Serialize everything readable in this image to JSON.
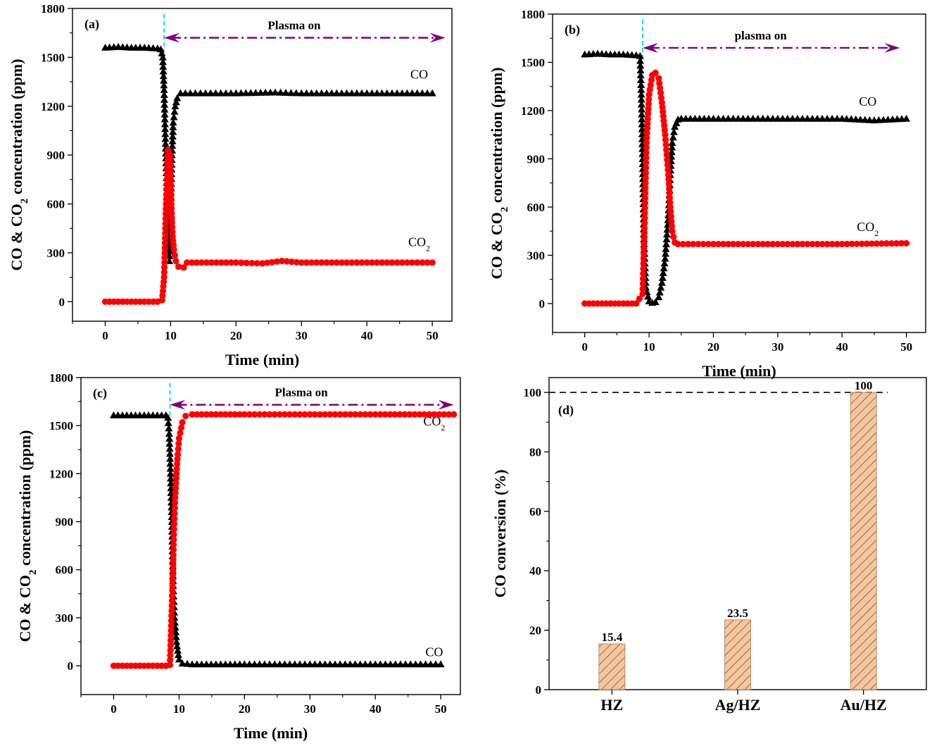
{
  "colors": {
    "co": "#000000",
    "co2": "#ff0000",
    "plasma_arrow": "#800080",
    "plasma_start_line": "#00e5ff",
    "bar_fill": "#f5c59d",
    "bar_hatch": "#4a3728",
    "reference_line": "#000000"
  },
  "chart_data": [
    {
      "id": "a",
      "type": "scatter",
      "panel_label": "(a)",
      "xlabel": "Time (min)",
      "ylabel": "CO & CO₂ concentration (ppm)",
      "xlim": [
        -5,
        53
      ],
      "ylim": [
        -120,
        1800
      ],
      "xticks": [
        0,
        10,
        20,
        30,
        40,
        50
      ],
      "yticks": [
        0,
        300,
        600,
        900,
        1200,
        1500,
        1800
      ],
      "annotation": {
        "text": "Plasma on",
        "x_start": 9,
        "x_end": 52,
        "y": 1620
      },
      "plasma_start_x": 9,
      "series": [
        {
          "name": "CO",
          "marker": "triangle",
          "color": "#000000",
          "label_at": [
            48,
            1370
          ],
          "points": [
            [
              0,
              1560
            ],
            [
              2,
              1565
            ],
            [
              4,
              1560
            ],
            [
              6,
              1560
            ],
            [
              8,
              1555
            ],
            [
              8.5,
              1550
            ],
            [
              8.8,
              1500
            ],
            [
              9,
              1300
            ],
            [
              9.2,
              1000
            ],
            [
              9.4,
              700
            ],
            [
              9.6,
              400
            ],
            [
              9.8,
              250
            ],
            [
              10,
              550
            ],
            [
              10.2,
              900
            ],
            [
              10.4,
              1100
            ],
            [
              10.7,
              1200
            ],
            [
              11,
              1250
            ],
            [
              11.5,
              1280
            ],
            [
              13,
              1280
            ],
            [
              20,
              1280
            ],
            [
              26,
              1285
            ],
            [
              30,
              1280
            ],
            [
              40,
              1280
            ],
            [
              50,
              1280
            ]
          ]
        },
        {
          "name": "CO₂",
          "marker": "circle",
          "color": "#ff0000",
          "label_at": [
            48,
            340
          ],
          "points": [
            [
              0,
              0
            ],
            [
              2,
              0
            ],
            [
              4,
              0
            ],
            [
              6,
              0
            ],
            [
              8,
              0
            ],
            [
              8.7,
              10
            ],
            [
              9,
              150
            ],
            [
              9.3,
              600
            ],
            [
              9.6,
              930
            ],
            [
              9.9,
              900
            ],
            [
              10.1,
              600
            ],
            [
              10.3,
              400
            ],
            [
              10.5,
              320
            ],
            [
              10.8,
              250
            ],
            [
              11.2,
              215
            ],
            [
              12,
              210
            ],
            [
              12.5,
              240
            ],
            [
              20,
              240
            ],
            [
              24,
              235
            ],
            [
              27,
              250
            ],
            [
              30,
              240
            ],
            [
              40,
              240
            ],
            [
              50,
              240
            ]
          ]
        }
      ]
    },
    {
      "id": "b",
      "type": "scatter",
      "panel_label": "(b)",
      "xlabel": "Time (min)",
      "ylabel": "CO & CO₂ concentration (ppm)",
      "xlim": [
        -5,
        53
      ],
      "ylim": [
        -180,
        1800
      ],
      "xticks": [
        0,
        10,
        20,
        30,
        40,
        50
      ],
      "yticks": [
        0,
        300,
        600,
        900,
        1200,
        1500,
        1800
      ],
      "annotation": {
        "text": "plasma on",
        "x_start": 9,
        "x_end": 49,
        "y": 1590
      },
      "plasma_start_x": 9,
      "series": [
        {
          "name": "CO",
          "marker": "triangle",
          "color": "#000000",
          "label_at": [
            44,
            1230
          ],
          "points": [
            [
              0,
              1550
            ],
            [
              2,
              1555
            ],
            [
              4,
              1550
            ],
            [
              6,
              1550
            ],
            [
              8,
              1545
            ],
            [
              8.6,
              1540
            ],
            [
              8.8,
              1300
            ],
            [
              9,
              900
            ],
            [
              9.2,
              400
            ],
            [
              9.5,
              100
            ],
            [
              10,
              15
            ],
            [
              10.5,
              5
            ],
            [
              11,
              10
            ],
            [
              11.5,
              40
            ],
            [
              12,
              130
            ],
            [
              12.5,
              280
            ],
            [
              13,
              550
            ],
            [
              13.3,
              800
            ],
            [
              13.6,
              1000
            ],
            [
              14,
              1100
            ],
            [
              14.5,
              1145
            ],
            [
              15,
              1150
            ],
            [
              20,
              1150
            ],
            [
              30,
              1150
            ],
            [
              40,
              1150
            ],
            [
              45,
              1140
            ],
            [
              50,
              1150
            ]
          ]
        },
        {
          "name": "CO₂",
          "marker": "circle",
          "color": "#ff0000",
          "label_at": [
            44,
            450
          ],
          "points": [
            [
              0,
              0
            ],
            [
              2,
              0
            ],
            [
              4,
              0
            ],
            [
              6,
              0
            ],
            [
              8,
              0
            ],
            [
              9,
              60
            ],
            [
              9.3,
              500
            ],
            [
              9.6,
              1000
            ],
            [
              10,
              1300
            ],
            [
              10.5,
              1420
            ],
            [
              11,
              1435
            ],
            [
              11.5,
              1400
            ],
            [
              12,
              1250
            ],
            [
              12.5,
              1050
            ],
            [
              13,
              800
            ],
            [
              13.3,
              600
            ],
            [
              13.6,
              450
            ],
            [
              14,
              380
            ],
            [
              14.5,
              370
            ],
            [
              20,
              370
            ],
            [
              30,
              370
            ],
            [
              40,
              370
            ],
            [
              50,
              375
            ]
          ]
        }
      ]
    },
    {
      "id": "c",
      "type": "scatter",
      "panel_label": "(c)",
      "xlabel": "Time (min)",
      "ylabel": "CO & CO₂ concentration (ppm)",
      "xlim": [
        -5,
        53
      ],
      "ylim": [
        -180,
        1800
      ],
      "xticks": [
        0,
        10,
        20,
        30,
        40,
        50
      ],
      "yticks": [
        0,
        300,
        600,
        900,
        1200,
        1500,
        1800
      ],
      "annotation": {
        "text": "Plasma on",
        "x_start": 8.6,
        "x_end": 52,
        "y": 1630
      },
      "plasma_start_x": 8.6,
      "series": [
        {
          "name": "CO",
          "marker": "triangle",
          "color": "#000000",
          "label_at": [
            49,
            60
          ],
          "points": [
            [
              0,
              1565
            ],
            [
              2,
              1565
            ],
            [
              4,
              1565
            ],
            [
              6,
              1565
            ],
            [
              8,
              1565
            ],
            [
              8.3,
              1550
            ],
            [
              8.5,
              1450
            ],
            [
              8.7,
              1200
            ],
            [
              8.9,
              900
            ],
            [
              9.1,
              500
            ],
            [
              9.3,
              300
            ],
            [
              9.6,
              150
            ],
            [
              10,
              40
            ],
            [
              10.5,
              15
            ],
            [
              12,
              10
            ],
            [
              20,
              10
            ],
            [
              30,
              10
            ],
            [
              40,
              10
            ],
            [
              50,
              10
            ]
          ]
        },
        {
          "name": "CO₂",
          "marker": "circle",
          "color": "#ff0000",
          "label_at": [
            49,
            1500
          ],
          "points": [
            [
              0,
              0
            ],
            [
              2,
              0
            ],
            [
              4,
              0
            ],
            [
              6,
              0
            ],
            [
              8,
              0
            ],
            [
              8.6,
              5
            ],
            [
              8.8,
              250
            ],
            [
              9,
              500
            ],
            [
              9.2,
              820
            ],
            [
              9.4,
              1050
            ],
            [
              9.6,
              1200
            ],
            [
              9.8,
              1320
            ],
            [
              10,
              1420
            ],
            [
              10.5,
              1520
            ],
            [
              11,
              1560
            ],
            [
              12,
              1570
            ],
            [
              20,
              1570
            ],
            [
              30,
              1570
            ],
            [
              40,
              1570
            ],
            [
              52,
              1570
            ]
          ]
        }
      ]
    },
    {
      "id": "d",
      "type": "bar",
      "panel_label": "(d)",
      "xlabel": "",
      "ylabel": "CO conversion (%)",
      "ylim": [
        0,
        105
      ],
      "yticks": [
        0,
        20,
        40,
        60,
        80,
        100
      ],
      "reference_line_y": 100,
      "categories": [
        "HZ",
        "Ag/HZ",
        "Au/HZ"
      ],
      "values": [
        15.4,
        23.5,
        100
      ],
      "value_labels": [
        "15.4",
        "23.5",
        "100"
      ]
    }
  ]
}
